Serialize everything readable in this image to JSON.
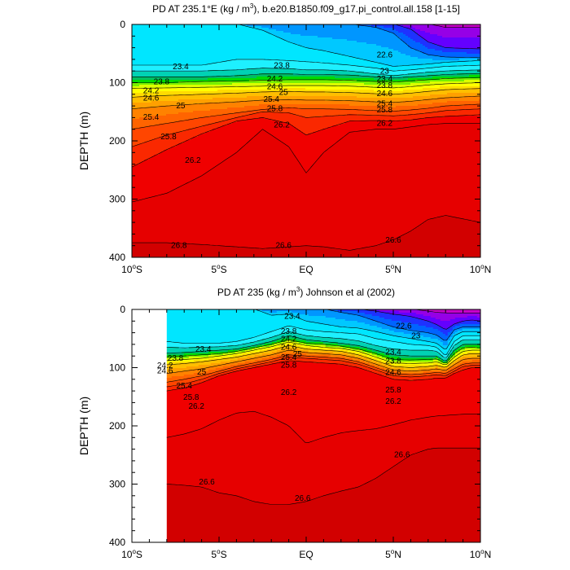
{
  "colors": {
    "levels": [
      {
        "min": 21.8,
        "color": "#c800c8"
      },
      {
        "min": 22.0,
        "color": "#9600e6"
      },
      {
        "min": 22.2,
        "color": "#6400ff"
      },
      {
        "min": 22.4,
        "color": "#1e32ff"
      },
      {
        "min": 22.6,
        "color": "#0064ff"
      },
      {
        "min": 22.8,
        "color": "#0096ff"
      },
      {
        "min": 23.0,
        "color": "#00c8ff"
      },
      {
        "min": 23.2,
        "color": "#00e6ff"
      },
      {
        "min": 23.4,
        "color": "#1ef0ff"
      },
      {
        "min": 23.6,
        "color": "#00d2b4"
      },
      {
        "min": 23.8,
        "color": "#00be64"
      },
      {
        "min": 24.0,
        "color": "#00dc00"
      },
      {
        "min": 24.2,
        "color": "#78f000"
      },
      {
        "min": 24.4,
        "color": "#dcff00"
      },
      {
        "min": 24.6,
        "color": "#ffff00"
      },
      {
        "min": 24.8,
        "color": "#ffdc00"
      },
      {
        "min": 25.0,
        "color": "#ffbe00"
      },
      {
        "min": 25.2,
        "color": "#ffa000"
      },
      {
        "min": 25.4,
        "color": "#ff8200"
      },
      {
        "min": 25.6,
        "color": "#ff6400"
      },
      {
        "min": 25.8,
        "color": "#ff4600"
      },
      {
        "min": 26.0,
        "color": "#fa2800"
      },
      {
        "min": 26.2,
        "color": "#f00000"
      },
      {
        "min": 26.4,
        "color": "#e60000"
      },
      {
        "min": 26.6,
        "color": "#d20000"
      }
    ],
    "axis": "#000000"
  },
  "chart_data": [
    {
      "type": "heatmap",
      "title": "PD AT 235.1°E (kg / m³), b.e20.B1850.f09_g17.pi_control.all.158 [1-15]",
      "title_parts": [
        "PD AT 235.1",
        "°",
        "E (kg / m",
        "3",
        "), b.e20.B1850.f09_g17.pi_control.all.158 [1-15]"
      ],
      "xlabel": "",
      "ylabel": "DEPTH (m)",
      "xlim": [
        -10,
        10
      ],
      "ylim": [
        400,
        0
      ],
      "data_xmin": -10,
      "x_tick_labels": [
        {
          "value": -10,
          "text": "10",
          "sup": "o",
          "suffix": "S"
        },
        {
          "value": -5,
          "text": "5",
          "sup": "o",
          "suffix": "S"
        },
        {
          "value": 0,
          "text": "EQ",
          "sup": "",
          "suffix": ""
        },
        {
          "value": 5,
          "text": "5",
          "sup": "o",
          "suffix": "N"
        },
        {
          "value": 10,
          "text": "10",
          "sup": "o",
          "suffix": "N"
        }
      ],
      "y_ticks": [
        0,
        100,
        200,
        300,
        400
      ],
      "isopycnal_depths": {
        "lat": [
          -10,
          -8,
          -6,
          -4,
          -2.5,
          -1,
          0,
          1,
          2.5,
          4,
          5,
          6,
          7,
          8,
          10
        ],
        "levels": {
          "22.0": [
            -1,
            -1,
            -1,
            -1,
            -1,
            -1,
            -1,
            -1,
            -1,
            -1,
            -1,
            -1,
            -1,
            5,
            5
          ],
          "22.4": [
            -1,
            -1,
            -1,
            -1,
            -1,
            -1,
            -1,
            -1,
            -1,
            -1,
            -1,
            8,
            30,
            40,
            42
          ],
          "22.8": [
            -1,
            -1,
            -1,
            -1,
            -1,
            -1,
            -1,
            -1,
            -1,
            5,
            15,
            40,
            52,
            56,
            57
          ],
          "23.2": [
            -1,
            -1,
            -1,
            -1,
            10,
            30,
            40,
            45,
            55,
            65,
            72,
            70,
            68,
            65,
            62
          ],
          "23.4": [
            70,
            70,
            70,
            60,
            60,
            62,
            64,
            66,
            70,
            75,
            80,
            78,
            75,
            72,
            70
          ],
          "23.6": [
            80,
            80,
            80,
            78,
            75,
            76,
            78,
            78,
            80,
            85,
            88,
            85,
            82,
            80,
            78
          ],
          "23.8": [
            90,
            90,
            90,
            88,
            85,
            85,
            86,
            86,
            87,
            90,
            92,
            90,
            88,
            86,
            84
          ],
          "24.2": [
            100,
            100,
            98,
            97,
            96,
            95,
            95,
            95,
            96,
            98,
            99,
            97,
            95,
            93,
            91
          ],
          "24.6": [
            110,
            109,
            108,
            107,
            106,
            105,
            105,
            105,
            106,
            108,
            109,
            107,
            104,
            102,
            100
          ],
          "25.0": [
            125,
            122,
            120,
            118,
            116,
            115,
            116,
            116,
            117,
            119,
            120,
            118,
            115,
            112,
            110
          ],
          "25.4": [
            145,
            140,
            136,
            133,
            130,
            129,
            130,
            130,
            131,
            133,
            134,
            132,
            129,
            126,
            123
          ],
          "25.8": [
            180,
            170,
            160,
            152,
            146,
            143,
            145,
            145,
            146,
            148,
            149,
            147,
            144,
            140,
            137
          ],
          "26.0": [
            210,
            190,
            175,
            160,
            150,
            152,
            160,
            158,
            155,
            156,
            157,
            155,
            152,
            148,
            145
          ],
          "26.2": [
            245,
            215,
            188,
            166,
            160,
            170,
            190,
            180,
            166,
            165,
            166,
            164,
            160,
            158,
            155
          ],
          "26.4": [
            305,
            290,
            260,
            220,
            180,
            210,
            255,
            220,
            185,
            180,
            180,
            176,
            172,
            170,
            170
          ],
          "26.6": [
            375,
            375,
            378,
            382,
            385,
            382,
            380,
            382,
            388,
            380,
            370,
            355,
            335,
            328,
            340
          ]
        }
      },
      "contour_labels": [
        {
          "x": -7.2,
          "y": 72,
          "text": "23.4"
        },
        {
          "x": -8.3,
          "y": 98,
          "text": "23.8"
        },
        {
          "x": -8.9,
          "y": 113,
          "text": "24.2"
        },
        {
          "x": -8.9,
          "y": 126,
          "text": "24.6"
        },
        {
          "x": -7.2,
          "y": 139,
          "text": "25"
        },
        {
          "x": -8.9,
          "y": 159,
          "text": "25.4"
        },
        {
          "x": -7.9,
          "y": 192,
          "text": "25.8"
        },
        {
          "x": -6.5,
          "y": 233,
          "text": "26.2"
        },
        {
          "x": -7.3,
          "y": 379,
          "text": "26.8"
        },
        {
          "x": -1.4,
          "y": 70,
          "text": "23.8"
        },
        {
          "x": -1.8,
          "y": 93,
          "text": "24.2"
        },
        {
          "x": -1.8,
          "y": 106,
          "text": "24.6"
        },
        {
          "x": -1.3,
          "y": 116,
          "text": "25"
        },
        {
          "x": -2.0,
          "y": 128,
          "text": "25.4"
        },
        {
          "x": -1.8,
          "y": 144,
          "text": "25.8"
        },
        {
          "x": -1.4,
          "y": 172,
          "text": "26.2"
        },
        {
          "x": -1.3,
          "y": 379,
          "text": "26.6"
        },
        {
          "x": 4.5,
          "y": 52,
          "text": "22.6"
        },
        {
          "x": 4.5,
          "y": 80,
          "text": "23"
        },
        {
          "x": 4.5,
          "y": 93,
          "text": "23.4"
        },
        {
          "x": 4.5,
          "y": 104,
          "text": "23.8"
        },
        {
          "x": 4.5,
          "y": 118,
          "text": "24.6"
        },
        {
          "x": 4.5,
          "y": 136,
          "text": "25.4"
        },
        {
          "x": 4.5,
          "y": 146,
          "text": "25.8"
        },
        {
          "x": 4.5,
          "y": 169,
          "text": "26.2"
        },
        {
          "x": 5.0,
          "y": 370,
          "text": "26.6"
        }
      ]
    },
    {
      "type": "heatmap",
      "title": "PD AT 235 (kg / m³) Johnson et al (2002)",
      "title_parts": [
        "PD AT 235 (kg / m",
        "3",
        ") Johnson et al (2002)"
      ],
      "xlabel": "",
      "ylabel": "DEPTH (m)",
      "xlim": [
        -10,
        10
      ],
      "ylim": [
        400,
        0
      ],
      "data_xmin": -8,
      "x_tick_labels": [
        {
          "value": -10,
          "text": "10",
          "sup": "o",
          "suffix": "S"
        },
        {
          "value": -5,
          "text": "5",
          "sup": "o",
          "suffix": "S"
        },
        {
          "value": 0,
          "text": "EQ",
          "sup": "",
          "suffix": ""
        },
        {
          "value": 5,
          "text": "5",
          "sup": "o",
          "suffix": "N"
        },
        {
          "value": 10,
          "text": "10",
          "sup": "o",
          "suffix": "N"
        }
      ],
      "y_ticks": [
        0,
        100,
        200,
        300,
        400
      ],
      "isopycnal_depths": {
        "lat": [
          -8,
          -7,
          -6,
          -5,
          -4,
          -3,
          -2,
          -1,
          0,
          1,
          2,
          3,
          4,
          5,
          6,
          7,
          7.5,
          8,
          8.5,
          9,
          9.5,
          10
        ],
        "levels": {
          "22.0": [
            -1,
            -1,
            -1,
            -1,
            -1,
            -1,
            -1,
            -1,
            -1,
            -1,
            -1,
            -1,
            -1,
            -1,
            -1,
            3,
            5,
            6,
            6,
            6,
            6,
            6
          ],
          "22.4": [
            -1,
            -1,
            -1,
            -1,
            -1,
            -1,
            -1,
            -1,
            -1,
            -1,
            -1,
            -1,
            3,
            8,
            12,
            20,
            26,
            35,
            25,
            20,
            18,
            20
          ],
          "22.8": [
            -1,
            -1,
            -1,
            -1,
            -1,
            -1,
            -1,
            -1,
            -1,
            -1,
            5,
            10,
            20,
            30,
            36,
            40,
            44,
            55,
            35,
            30,
            30,
            30
          ],
          "23.2": [
            -1,
            -1,
            -1,
            -1,
            -1,
            -1,
            10,
            8,
            20,
            25,
            30,
            32,
            38,
            45,
            50,
            55,
            58,
            70,
            45,
            38,
            38,
            38
          ],
          "23.4": [
            55,
            58,
            58,
            58,
            55,
            48,
            38,
            28,
            35,
            38,
            40,
            42,
            50,
            55,
            60,
            62,
            65,
            80,
            55,
            45,
            45,
            45
          ],
          "23.6": [
            65,
            66,
            65,
            64,
            62,
            56,
            48,
            38,
            45,
            48,
            50,
            54,
            62,
            68,
            70,
            70,
            72,
            85,
            62,
            52,
            52,
            52
          ],
          "23.8": [
            75,
            74,
            72,
            70,
            68,
            62,
            55,
            45,
            52,
            55,
            58,
            62,
            70,
            78,
            80,
            80,
            80,
            90,
            70,
            60,
            60,
            60
          ],
          "24.2": [
            82,
            80,
            78,
            76,
            72,
            66,
            60,
            52,
            58,
            60,
            63,
            68,
            76,
            86,
            87,
            86,
            85,
            93,
            76,
            66,
            65,
            66
          ],
          "24.6": [
            88,
            86,
            84,
            80,
            76,
            70,
            64,
            56,
            62,
            65,
            67,
            72,
            82,
            92,
            93,
            92,
            90,
            96,
            82,
            72,
            70,
            70
          ],
          "25.0": [
            95,
            93,
            90,
            86,
            82,
            76,
            70,
            62,
            68,
            70,
            72,
            78,
            88,
            98,
            100,
            98,
            96,
            100,
            88,
            78,
            76,
            76
          ],
          "25.4": [
            110,
            106,
            102,
            96,
            90,
            84,
            78,
            70,
            74,
            76,
            78,
            84,
            94,
            104,
            106,
            104,
            102,
            105,
            95,
            86,
            84,
            84
          ],
          "25.8": [
            125,
            120,
            114,
            106,
            98,
            92,
            86,
            78,
            80,
            82,
            84,
            90,
            100,
            110,
            112,
            110,
            108,
            110,
            102,
            94,
            92,
            92
          ],
          "26.0": [
            133,
            128,
            120,
            110,
            102,
            96,
            90,
            82,
            84,
            86,
            88,
            94,
            104,
            114,
            116,
            114,
            112,
            114,
            106,
            98,
            96,
            96
          ],
          "26.2": [
            140,
            135,
            126,
            114,
            106,
            100,
            94,
            88,
            90,
            92,
            94,
            100,
            110,
            120,
            122,
            120,
            118,
            118,
            110,
            104,
            100,
            100
          ],
          "26.4": [
            220,
            214,
            205,
            190,
            178,
            175,
            185,
            200,
            230,
            220,
            212,
            208,
            205,
            198,
            190,
            185,
            183,
            182,
            181,
            180,
            180,
            180
          ],
          "26.6": [
            300,
            302,
            305,
            315,
            320,
            330,
            335,
            335,
            330,
            320,
            312,
            305,
            290,
            270,
            250,
            240,
            238,
            238,
            238,
            238,
            238,
            238
          ]
        }
      },
      "contour_labels": [
        {
          "x": -7.5,
          "y": 83,
          "text": "23.8"
        },
        {
          "x": -5.9,
          "y": 68,
          "text": "23.4"
        },
        {
          "x": -8.1,
          "y": 96,
          "text": "24.2"
        },
        {
          "x": -8.1,
          "y": 105,
          "text": "24.6"
        },
        {
          "x": -6.0,
          "y": 107,
          "text": "25"
        },
        {
          "x": -7.0,
          "y": 131,
          "text": "25.4"
        },
        {
          "x": -6.6,
          "y": 150,
          "text": "25.8"
        },
        {
          "x": -6.3,
          "y": 166,
          "text": "26.2"
        },
        {
          "x": -5.7,
          "y": 296,
          "text": "26.6"
        },
        {
          "x": -0.8,
          "y": 11,
          "text": "23.4"
        },
        {
          "x": -1.0,
          "y": 37,
          "text": "23.8"
        },
        {
          "x": -1.0,
          "y": 50,
          "text": "24.2"
        },
        {
          "x": -1.0,
          "y": 64,
          "text": "24.6"
        },
        {
          "x": -0.5,
          "y": 76,
          "text": "25"
        },
        {
          "x": -1.0,
          "y": 82,
          "text": "25.4"
        },
        {
          "x": -1.0,
          "y": 95,
          "text": "25.8"
        },
        {
          "x": -1.0,
          "y": 142,
          "text": "26.2"
        },
        {
          "x": -0.2,
          "y": 324,
          "text": "26.6"
        },
        {
          "x": 5.6,
          "y": 28,
          "text": "22.6"
        },
        {
          "x": 6.3,
          "y": 45,
          "text": "23"
        },
        {
          "x": 5.0,
          "y": 73,
          "text": "23.4"
        },
        {
          "x": 5.0,
          "y": 88,
          "text": "23.8"
        },
        {
          "x": 5.0,
          "y": 108,
          "text": "24.6"
        },
        {
          "x": 5.0,
          "y": 138,
          "text": "25.8"
        },
        {
          "x": 5.0,
          "y": 157,
          "text": "26.2"
        },
        {
          "x": 5.5,
          "y": 249,
          "text": "26.6"
        }
      ]
    }
  ]
}
